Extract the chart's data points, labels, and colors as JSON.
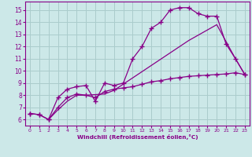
{
  "xlabel": "Windchill (Refroidissement éolien,°C)",
  "background_color": "#cce8e8",
  "grid_color": "#aacccc",
  "line_color": "#880088",
  "xlim_min": -0.5,
  "xlim_max": 23.5,
  "ylim_min": 5.5,
  "ylim_max": 15.7,
  "xtick_vals": [
    0,
    1,
    2,
    3,
    4,
    5,
    6,
    7,
    8,
    9,
    10,
    11,
    12,
    13,
    14,
    15,
    16,
    17,
    18,
    19,
    20,
    21,
    22,
    23
  ],
  "ytick_vals": [
    6,
    7,
    8,
    9,
    10,
    11,
    12,
    13,
    14,
    15
  ],
  "line1_x": [
    0,
    1,
    2,
    3,
    4,
    5,
    6,
    7,
    8,
    9,
    10,
    11,
    12,
    13,
    14,
    15,
    16,
    17,
    18,
    19,
    20,
    21,
    22,
    23
  ],
  "line1_y": [
    6.5,
    6.4,
    6.0,
    7.8,
    8.5,
    8.7,
    8.8,
    7.5,
    9.0,
    8.8,
    9.0,
    11.0,
    12.0,
    13.5,
    14.0,
    15.0,
    15.2,
    15.2,
    14.7,
    14.5,
    14.5,
    12.2,
    11.0,
    9.7
  ],
  "line2_x": [
    0,
    1,
    2,
    3,
    4,
    5,
    6,
    7,
    8,
    9,
    10,
    11,
    12,
    13,
    14,
    15,
    16,
    17,
    18,
    19,
    20,
    21,
    22,
    23
  ],
  "line2_y": [
    6.5,
    6.4,
    6.0,
    7.0,
    7.8,
    8.1,
    8.0,
    7.8,
    8.3,
    8.5,
    8.6,
    8.7,
    8.9,
    9.1,
    9.2,
    9.35,
    9.45,
    9.55,
    9.6,
    9.65,
    9.7,
    9.75,
    9.85,
    9.7
  ],
  "line3_x": [
    2,
    3,
    4,
    5,
    6,
    8,
    9,
    17,
    20,
    22,
    23
  ],
  "line3_y": [
    6.0,
    6.8,
    7.5,
    8.0,
    8.0,
    8.1,
    8.4,
    12.5,
    13.8,
    11.0,
    9.7
  ]
}
